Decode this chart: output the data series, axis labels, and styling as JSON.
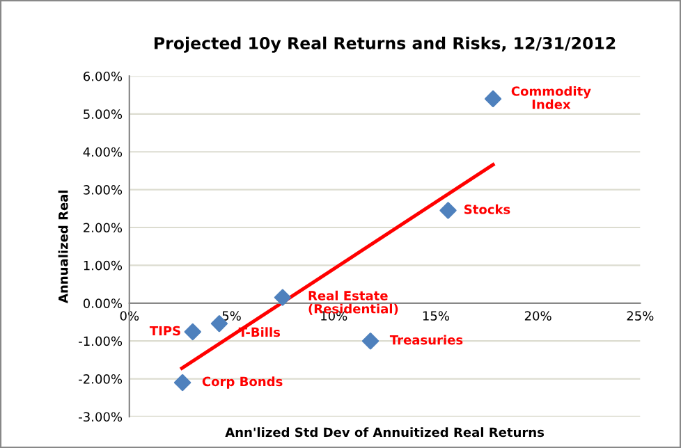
{
  "chart_data": {
    "type": "scatter",
    "title": "Projected 10y Real Returns and Risks, 12/31/2012",
    "xlabel": "Ann'lized Std Dev of Annuitized Real Returns",
    "ylabel": "Annualized Real",
    "series": [
      {
        "type": "scatter",
        "color": "#4f81bd",
        "marker": "diamond",
        "x": [
          17.8,
          15.6,
          7.5,
          4.4,
          3.1,
          11.8,
          2.6
        ],
        "values": [
          5.4,
          2.45,
          0.15,
          -0.54,
          -0.76,
          -1.0,
          -2.1
        ]
      },
      {
        "type": "line",
        "color": "#ff0000",
        "x": [
          2.57,
          17.8
        ],
        "values": [
          -1.72,
          3.66
        ]
      }
    ],
    "annotations": [
      {
        "text": "Commodity\nIndex",
        "x": 17.8,
        "y": 5.4
      },
      {
        "text": "Stocks",
        "x": 15.6,
        "y": 2.45
      },
      {
        "text": "Real Estate\n(Residential)",
        "x": 7.5,
        "y": 0.15
      },
      {
        "text": "T-Bills",
        "x": 4.4,
        "y": -0.54
      },
      {
        "text": "TIPS",
        "x": 3.1,
        "y": -0.76
      },
      {
        "text": "Treasuries",
        "x": 11.8,
        "y": -1.0
      },
      {
        "text": "Corp Bonds",
        "x": 2.6,
        "y": -2.1
      }
    ],
    "xlim": [
      0,
      25
    ],
    "ylim": [
      -3,
      6
    ],
    "xticks": [
      {
        "value": 0,
        "label": "0%"
      },
      {
        "value": 5,
        "label": "5%"
      },
      {
        "value": 10,
        "label": "10%"
      },
      {
        "value": 15,
        "label": "15%"
      },
      {
        "value": 20,
        "label": "20%"
      },
      {
        "value": 25,
        "label": "25%"
      }
    ],
    "yticks": [
      {
        "value": -3,
        "label": "-3.00%"
      },
      {
        "value": -2,
        "label": "-2.00%"
      },
      {
        "value": -1,
        "label": "-1.00%"
      },
      {
        "value": 0,
        "label": "0.00%"
      },
      {
        "value": 1,
        "label": "1.00%"
      },
      {
        "value": 2,
        "label": "2.00%"
      },
      {
        "value": 3,
        "label": "3.00%"
      },
      {
        "value": 4,
        "label": "4.00%"
      },
      {
        "value": 5,
        "label": "5.00%"
      },
      {
        "value": 6,
        "label": "6.00%"
      }
    ],
    "grid": "y",
    "legend": false
  }
}
